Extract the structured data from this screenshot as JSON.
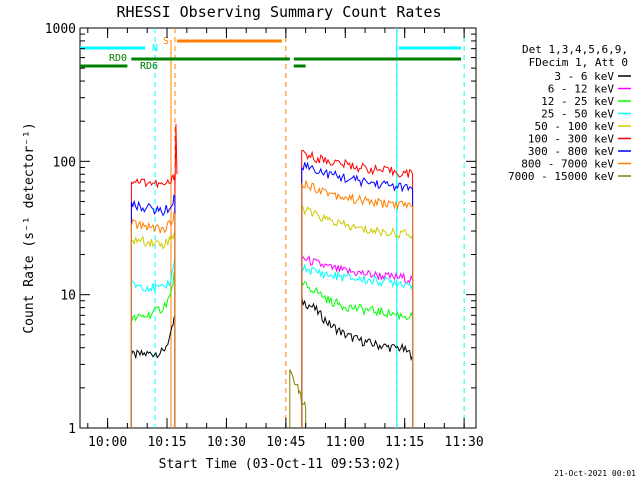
{
  "chart_data": {
    "type": "line",
    "title": "RHESSI Observing Summary Count Rates",
    "xlabel": "Start Time (03-Oct-11 09:53:02)",
    "ylabel": "Count Rate (s⁻¹ detector⁻¹)",
    "y_scale": "log",
    "ylim": [
      1,
      1000
    ],
    "y_ticks": [
      "1",
      "10",
      "100",
      "1000"
    ],
    "xlim": [
      "09:53:02",
      "11:33:00"
    ],
    "x_ticks": [
      "10:00",
      "10:15",
      "10:30",
      "10:45",
      "11:00",
      "11:15",
      "11:30"
    ],
    "legend_header": [
      "Det 1,3,4,5,6,9,",
      "FDecim 1, Att 0"
    ],
    "legend_placement": "right",
    "series": [
      {
        "name": "3 - 6 keV",
        "color": "#000000",
        "x": [
          "10:06",
          "10:10",
          "10:14",
          "10:16",
          "10:17"
        ],
        "y": [
          3.5,
          3.6,
          3.7,
          5,
          7
        ],
        "x2": [
          "10:49",
          "10:52",
          "10:56",
          "11:00",
          "11:04",
          "11:08",
          "11:12",
          "11:14",
          "11:17"
        ],
        "y2": [
          9,
          8,
          6,
          5,
          4.5,
          4.2,
          4,
          4,
          3.5
        ]
      },
      {
        "name": "6 - 12 keV",
        "color": "#ff00ff",
        "x": [
          "10:06",
          "10:17"
        ],
        "y": [
          null,
          null
        ],
        "x2": [
          "10:49",
          "10:52",
          "10:56",
          "11:00",
          "11:04",
          "11:08",
          "11:12",
          "11:14",
          "11:17"
        ],
        "y2": [
          19,
          17.5,
          16,
          15,
          14.5,
          14,
          13.5,
          13.5,
          13
        ]
      },
      {
        "name": "12 - 25 keV",
        "color": "#00ff00",
        "x": [
          "10:06",
          "10:10",
          "10:14",
          "10:16",
          "10:17"
        ],
        "y": [
          6.5,
          7,
          8,
          10,
          15
        ],
        "x2": [
          "10:49",
          "10:52",
          "10:56",
          "11:00",
          "11:04",
          "11:08",
          "11:12",
          "11:14",
          "11:17"
        ],
        "y2": [
          12,
          11,
          9,
          8.2,
          7.8,
          7.5,
          7.2,
          7,
          6.8
        ]
      },
      {
        "name": "25 - 50 keV",
        "color": "#00ffff",
        "x": [
          "10:06",
          "10:10",
          "10:14",
          "10:16",
          "10:17"
        ],
        "y": [
          12,
          11.5,
          11,
          13,
          20
        ],
        "x2": [
          "10:49",
          "10:52",
          "10:56",
          "11:00",
          "11:04",
          "11:08",
          "11:12",
          "11:14",
          "11:17"
        ],
        "y2": [
          16,
          15,
          14,
          13.5,
          13,
          12.7,
          12.5,
          12.3,
          12
        ]
      },
      {
        "name": "50 - 100 keV",
        "color": "#cccc00",
        "x": [
          "10:06",
          "10:10",
          "10:14",
          "10:16",
          "10:17"
        ],
        "y": [
          26,
          25,
          24,
          26,
          30
        ],
        "x2": [
          "10:49",
          "10:52",
          "10:56",
          "11:00",
          "11:04",
          "11:08",
          "11:12",
          "11:14",
          "11:17"
        ],
        "y2": [
          45,
          40,
          36,
          33,
          31,
          30,
          29,
          29,
          28
        ]
      },
      {
        "name": "100 - 300 keV",
        "color": "#ff0000",
        "x": [
          "10:06",
          "10:10",
          "10:14",
          "10:16",
          "10:17"
        ],
        "y": [
          72,
          70,
          66,
          70,
          80
        ],
        "x2": [
          "10:49",
          "10:52",
          "10:56",
          "11:00",
          "11:04",
          "11:08",
          "11:12",
          "11:14",
          "11:17"
        ],
        "y2": [
          115,
          108,
          100,
          95,
          90,
          86,
          84,
          82,
          80
        ]
      },
      {
        "name": "300 - 800 keV",
        "color": "#0000ff",
        "x": [
          "10:06",
          "10:10",
          "10:14",
          "10:16",
          "10:17"
        ],
        "y": [
          47,
          45,
          42,
          46,
          55
        ],
        "x2": [
          "10:49",
          "10:52",
          "10:56",
          "11:00",
          "11:04",
          "11:08",
          "11:12",
          "11:14",
          "11:17"
        ],
        "y2": [
          95,
          88,
          80,
          75,
          71,
          68,
          66,
          64,
          62
        ]
      },
      {
        "name": "800 - 7000 keV",
        "color": "#ff8000",
        "x": [
          "10:06",
          "10:10",
          "10:14",
          "10:16",
          "10:17"
        ],
        "y": [
          34,
          33,
          31,
          34,
          40
        ],
        "x2": [
          "10:49",
          "10:52",
          "10:56",
          "11:00",
          "11:04",
          "11:08",
          "11:12",
          "11:14",
          "11:17"
        ],
        "y2": [
          70,
          64,
          58,
          54,
          51,
          49,
          48,
          47,
          46
        ]
      },
      {
        "name": "7000 - 15000 keV",
        "color": "#808000",
        "x": [
          "10:06",
          "10:17"
        ],
        "y": [
          null,
          null
        ],
        "x2": [
          "10:46",
          "10:48",
          "10:49",
          "10:50"
        ],
        "y2": [
          2.7,
          2,
          1.6,
          1.4
        ]
      }
    ],
    "flags": {
      "N": {
        "label": "N",
        "color": "#00ffff"
      },
      "S": {
        "label": "S",
        "color": "#ff8000"
      },
      "RD0": {
        "label": "RD0",
        "color": "#008000"
      },
      "RD6": {
        "label": "RD6",
        "color": "#008000"
      }
    },
    "grid": false
  },
  "footer": {
    "timestamp": "21-Oct-2021 00:01"
  }
}
